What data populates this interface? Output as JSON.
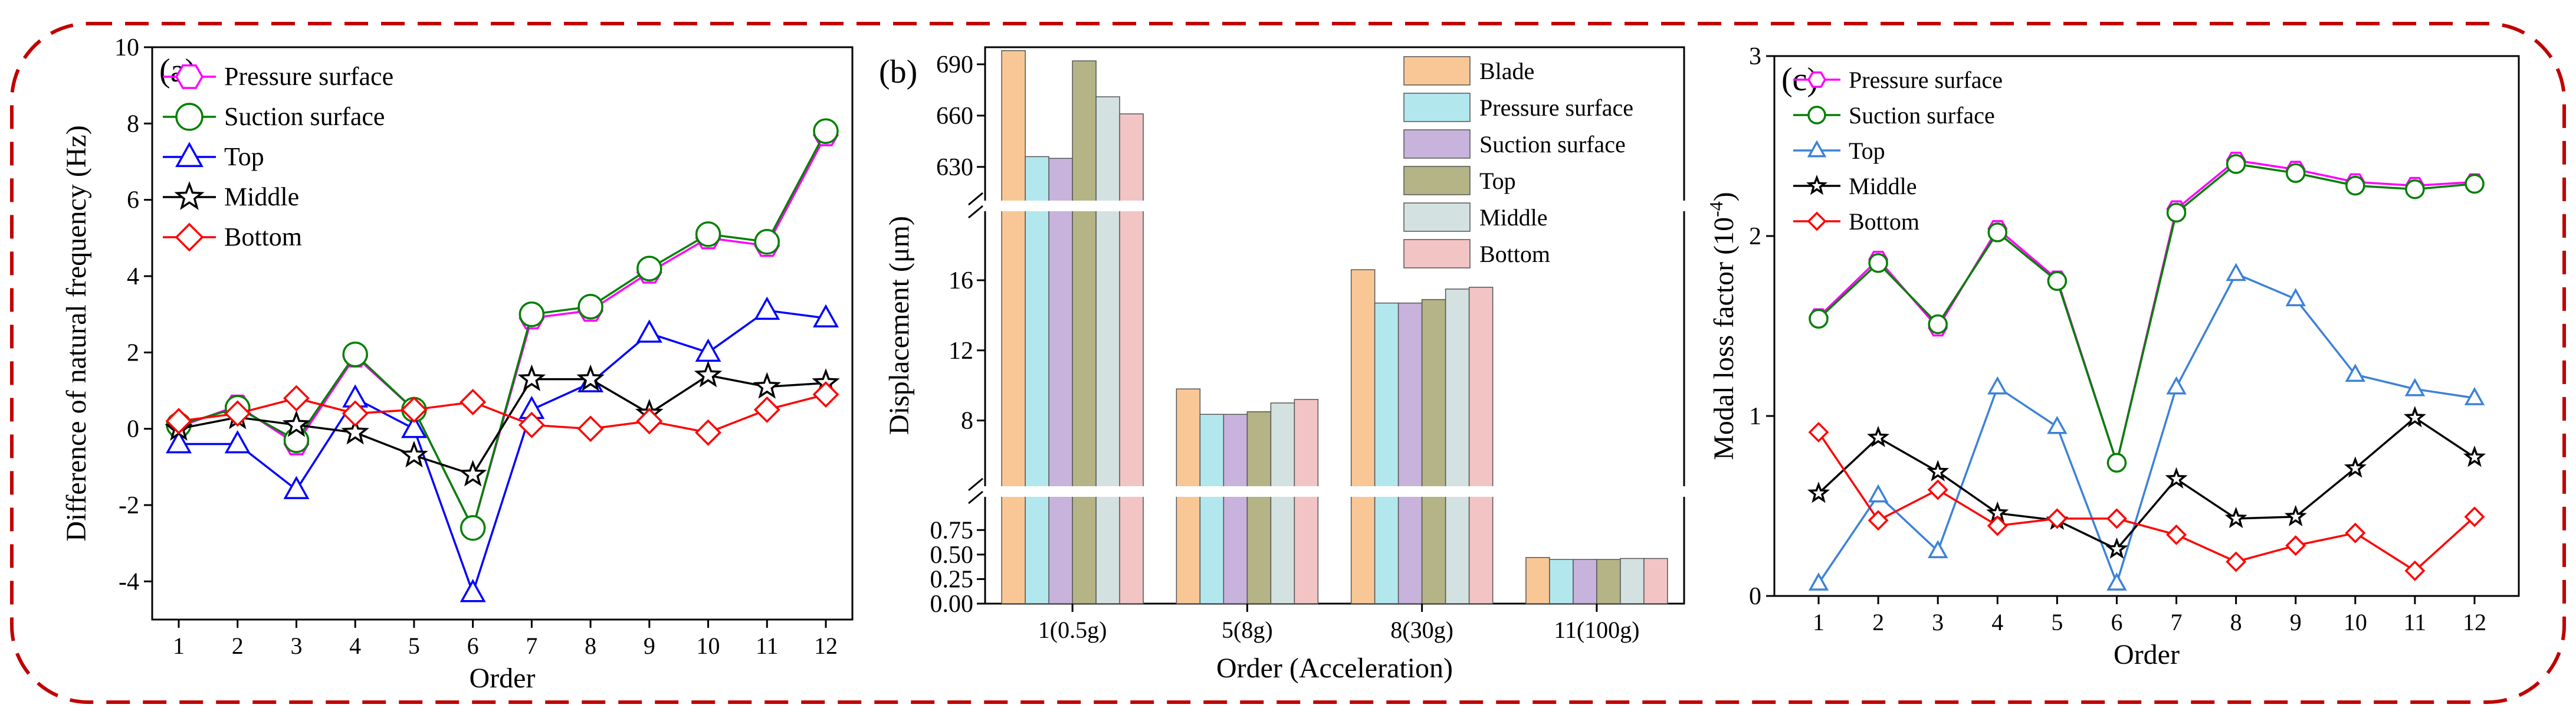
{
  "colors": {
    "frame": "#c00000",
    "pressure": "#ff00ff",
    "suction": "#008000",
    "top": "#0000ff",
    "middle": "#000000",
    "bottom": "#ff0000",
    "top_c": "#3c82d8",
    "bar_blade": "#f9c796",
    "bar_pressure": "#b3e7ee",
    "bar_suction": "#c8b3dc",
    "bar_top": "#b4b486",
    "bar_middle": "#d3e2e0",
    "bar_bottom": "#f3c4c4"
  },
  "chart_data": [
    {
      "type": "line",
      "panel_label": "(a)",
      "xlabel": "Order",
      "ylabel": "Difference of natural frequency (Hz)",
      "x": [
        1,
        2,
        3,
        4,
        5,
        6,
        7,
        8,
        9,
        10,
        11,
        12
      ],
      "xticks": [
        "1",
        "2",
        "3",
        "4",
        "5",
        "6",
        "7",
        "8",
        "9",
        "10",
        "11",
        "12"
      ],
      "ylim": [
        -5,
        10
      ],
      "yticks": [
        "-4",
        "-2",
        "0",
        "2",
        "4",
        "6",
        "8",
        "10"
      ],
      "legend_position": "top-left",
      "series": [
        {
          "name": "Pressure surface",
          "marker": "hexagon",
          "color_key": "pressure",
          "values": [
            0.05,
            0.6,
            -0.4,
            1.9,
            0.5,
            -2.6,
            2.9,
            3.1,
            4.1,
            5.0,
            4.8,
            7.7
          ]
        },
        {
          "name": "Suction surface",
          "marker": "circle",
          "color_key": "suction",
          "values": [
            0.1,
            0.55,
            -0.3,
            1.95,
            0.5,
            -2.6,
            3.0,
            3.2,
            4.2,
            5.1,
            4.9,
            7.8
          ]
        },
        {
          "name": "Top",
          "marker": "triangle",
          "color_key": "top",
          "values": [
            -0.4,
            -0.4,
            -1.6,
            0.8,
            0.0,
            -4.3,
            0.5,
            1.2,
            2.5,
            2.0,
            3.1,
            2.9
          ]
        },
        {
          "name": "Middle",
          "marker": "star",
          "color_key": "middle",
          "values": [
            0.0,
            0.3,
            0.1,
            -0.1,
            -0.7,
            -1.2,
            1.3,
            1.3,
            0.4,
            1.4,
            1.1,
            1.2
          ]
        },
        {
          "name": "Bottom",
          "marker": "diamond",
          "color_key": "bottom",
          "values": [
            0.2,
            0.4,
            0.8,
            0.4,
            0.5,
            0.7,
            0.1,
            0.0,
            0.2,
            -0.1,
            0.5,
            0.9
          ]
        }
      ]
    },
    {
      "type": "bar",
      "panel_label": "(b)",
      "xlabel": "Order (Acceleration)",
      "ylabel": "Displacement (μm)",
      "categories": [
        "1(0.5g)",
        "5(8g)",
        "8(30g)",
        "11(100g)"
      ],
      "broken_axis": true,
      "segments": [
        {
          "range": [
            0,
            0.95
          ],
          "ticks": [
            "0.00",
            "0.25",
            "0.50",
            "0.75"
          ]
        },
        {
          "range": [
            5.8,
            19.6
          ],
          "ticks": [
            "8",
            "12",
            "16"
          ]
        },
        {
          "range": [
            612,
            700
          ],
          "ticks": [
            "630",
            "660",
            "690"
          ]
        }
      ],
      "legend_position": "top-right",
      "series": [
        {
          "name": "Blade",
          "color_key": "bar_blade",
          "values": [
            698,
            9.8,
            16.6,
            0.47
          ]
        },
        {
          "name": "Pressure surface",
          "color_key": "bar_pressure",
          "values": [
            636,
            8.35,
            14.7,
            0.45
          ]
        },
        {
          "name": "Suction surface",
          "color_key": "bar_suction",
          "values": [
            635,
            8.35,
            14.7,
            0.45
          ]
        },
        {
          "name": "Top",
          "color_key": "bar_top",
          "values": [
            692,
            8.5,
            14.9,
            0.45
          ]
        },
        {
          "name": "Middle",
          "color_key": "bar_middle",
          "values": [
            671,
            9.0,
            15.5,
            0.46
          ]
        },
        {
          "name": "Bottom",
          "color_key": "bar_bottom",
          "values": [
            661,
            9.2,
            15.6,
            0.46
          ]
        }
      ]
    },
    {
      "type": "line",
      "panel_label": "(c)",
      "xlabel": "Order",
      "ylabel": "Modal loss factor (10",
      "ylabel_sup": "-4",
      "ylabel_end": ")",
      "x": [
        1,
        2,
        3,
        4,
        5,
        6,
        7,
        8,
        9,
        10,
        11,
        12
      ],
      "xticks": [
        "1",
        "2",
        "3",
        "4",
        "5",
        "6",
        "7",
        "8",
        "9",
        "10",
        "11",
        "12"
      ],
      "ylim": [
        0,
        3
      ],
      "yticks": [
        "0",
        "1",
        "2",
        "3"
      ],
      "legend_position": "top-left",
      "series": [
        {
          "name": "Pressure surface",
          "marker": "hexagon",
          "color_key": "pressure",
          "values": [
            1.55,
            1.87,
            1.49,
            2.04,
            1.76,
            0.74,
            2.15,
            2.42,
            2.37,
            2.3,
            2.28,
            2.3
          ]
        },
        {
          "name": "Suction surface",
          "marker": "circle",
          "color_key": "suction",
          "values": [
            1.54,
            1.85,
            1.51,
            2.02,
            1.75,
            0.74,
            2.13,
            2.4,
            2.35,
            2.28,
            2.26,
            2.29
          ]
        },
        {
          "name": "Top",
          "marker": "triangle",
          "color_key": "top_c",
          "values": [
            0.07,
            0.56,
            0.25,
            1.16,
            0.94,
            0.07,
            1.16,
            1.79,
            1.65,
            1.23,
            1.15,
            1.1
          ]
        },
        {
          "name": "Middle",
          "marker": "star",
          "color_key": "middle",
          "values": [
            0.57,
            0.88,
            0.69,
            0.46,
            0.42,
            0.26,
            0.65,
            0.43,
            0.44,
            0.71,
            0.99,
            0.77
          ]
        },
        {
          "name": "Bottom",
          "marker": "diamond",
          "color_key": "bottom",
          "values": [
            0.91,
            0.42,
            0.59,
            0.39,
            0.43,
            0.43,
            0.34,
            0.19,
            0.28,
            0.35,
            0.14,
            0.44
          ]
        }
      ]
    }
  ]
}
